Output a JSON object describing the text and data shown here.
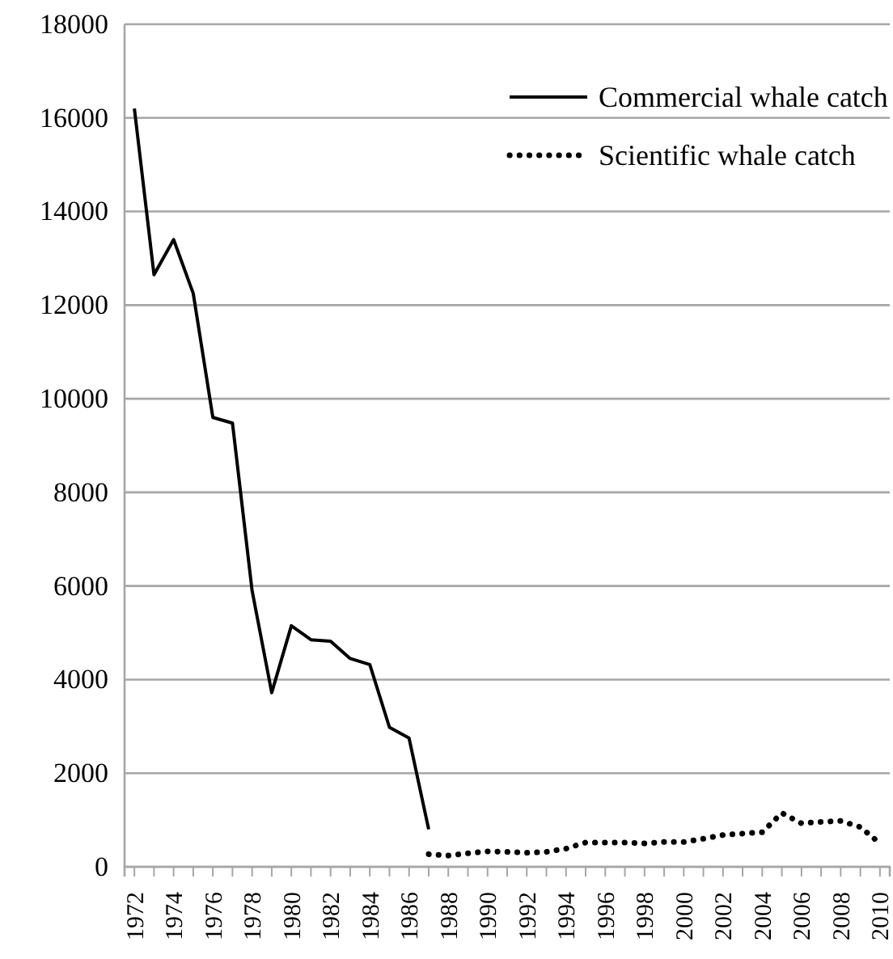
{
  "chart_data": {
    "type": "line",
    "categories": [
      "1972",
      null,
      "1974",
      null,
      "1976",
      null,
      "1978",
      null,
      "1980",
      null,
      "1982",
      null,
      "1984",
      null,
      "1986",
      null,
      "1988",
      null,
      "1990",
      null,
      "1992",
      null,
      "1994",
      null,
      "1996",
      null,
      "1998",
      null,
      "2000",
      null,
      "2002",
      null,
      "2004",
      null,
      "2006",
      null,
      "2008",
      null,
      "2010"
    ],
    "series": [
      {
        "name": "Commercial whale catch",
        "color": "#000000",
        "line_style": "solid",
        "values": [
          16200,
          12650,
          13400,
          12250,
          9600,
          9480,
          5900,
          3720,
          5150,
          4850,
          4820,
          4450,
          4320,
          2980,
          2750,
          800,
          null,
          null,
          null,
          null,
          null,
          null,
          null,
          null,
          null,
          null,
          null,
          null,
          null,
          null,
          null,
          null,
          null,
          null,
          null,
          null,
          null,
          null,
          null
        ]
      },
      {
        "name": "Scientific whale catch",
        "color": "#000000",
        "line_style": "dotted",
        "values": [
          null,
          null,
          null,
          null,
          null,
          null,
          null,
          null,
          null,
          null,
          null,
          null,
          null,
          null,
          null,
          270,
          240,
          290,
          330,
          320,
          300,
          320,
          390,
          520,
          520,
          520,
          500,
          530,
          530,
          600,
          680,
          710,
          740,
          1150,
          930,
          960,
          980,
          850,
          500
        ]
      }
    ],
    "ylim": [
      0,
      18000
    ],
    "yticks": [
      0,
      2000,
      4000,
      6000,
      8000,
      10000,
      12000,
      14000,
      16000,
      18000
    ],
    "grid": "y",
    "legend": "top right",
    "marker": "none"
  }
}
